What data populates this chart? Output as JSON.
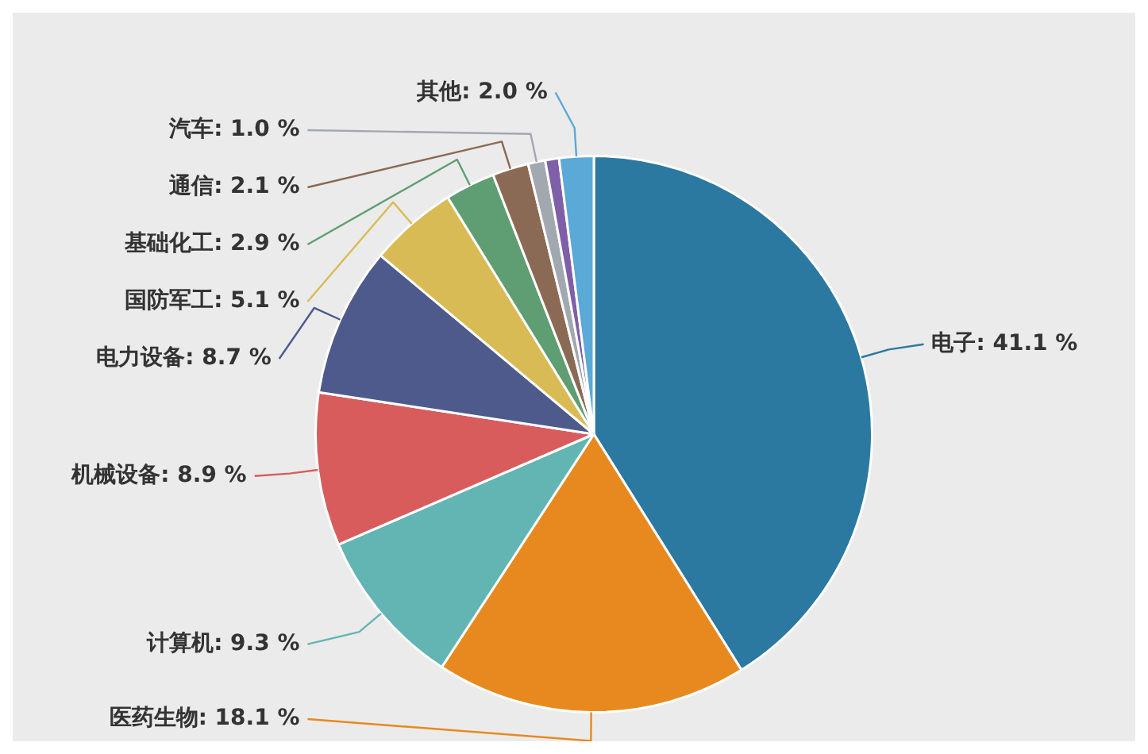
{
  "chart_data": {
    "type": "pie",
    "categories": [
      "电子",
      "医药生物",
      "计算机",
      "机械设备",
      "电力设备",
      "国防军工",
      "基础化工",
      "通信",
      "汽车",
      null,
      "其他"
    ],
    "values": [
      41.1,
      18.1,
      9.3,
      8.9,
      8.7,
      5.1,
      2.9,
      2.1,
      1.0,
      0.8,
      2.0
    ],
    "value_labels": [
      "41.1 %",
      "18.1 %",
      "9.3 %",
      "8.9 %",
      "8.7 %",
      "5.1 %",
      "2.9 %",
      "2.1 %",
      "1.0 %",
      null,
      "2.0 %"
    ],
    "colors": [
      "#2b79a0",
      "#e8891f",
      "#62b5b3",
      "#d95c5c",
      "#4e5a8c",
      "#d8bb55",
      "#5e9e72",
      "#8b6a55",
      "#a2a8b0",
      "#7f5fa8",
      "#5aa9d6"
    ]
  }
}
